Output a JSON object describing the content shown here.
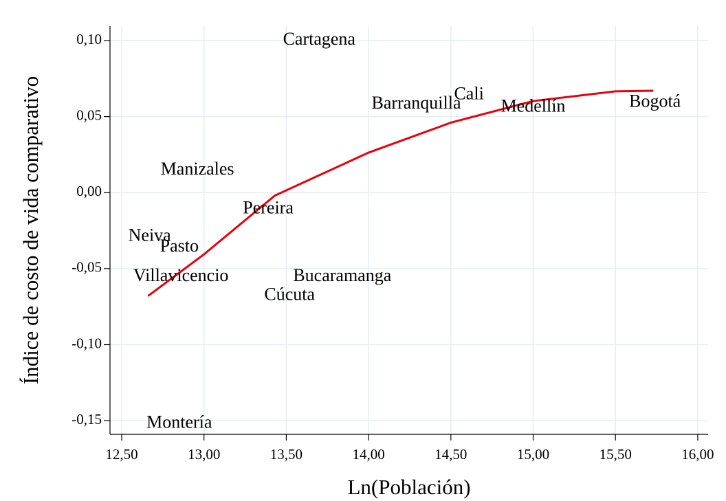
{
  "chart_data": {
    "type": "scatter",
    "x_label": "Ln(Población)",
    "y_label": "Índice de costo de vida comparativo",
    "labels": [
      "Cartagena",
      "Cali",
      "Barranquilla",
      "Medellín",
      "Bogotá",
      "Manizales",
      "Pereira",
      "Neiva",
      "Pasto",
      "Villavicencio",
      "Bucaramanga",
      "Cúcuta",
      "Montería"
    ],
    "x": [
      13.7,
      14.61,
      14.29,
      15.0,
      15.74,
      12.96,
      13.39,
      12.67,
      12.85,
      12.86,
      13.84,
      13.52,
      12.85
    ],
    "y": [
      0.1,
      0.064,
      0.058,
      0.056,
      0.059,
      0.0145,
      -0.011,
      -0.029,
      -0.036,
      -0.0555,
      -0.0555,
      -0.068,
      -0.152
    ],
    "label_color": "#000000",
    "fit": {
      "x": [
        12.66,
        13.0,
        13.43,
        14.0,
        14.5,
        15.0,
        15.5,
        15.73
      ],
      "y": [
        -0.068,
        -0.0406,
        -0.002,
        0.0263,
        0.046,
        0.0602,
        0.0666,
        0.067
      ],
      "color": "#e8000b"
    },
    "xlim": [
      12.429,
      16.063
    ],
    "ylim": [
      -0.159,
      0.1095
    ],
    "xticks": [
      {
        "value": 12.5,
        "label": "12,50"
      },
      {
        "value": 13.0,
        "label": "13,00"
      },
      {
        "value": 13.5,
        "label": "13,50"
      },
      {
        "value": 14.0,
        "label": "14,00"
      },
      {
        "value": 14.5,
        "label": "14,50"
      },
      {
        "value": 15.0,
        "label": "15,00"
      },
      {
        "value": 15.5,
        "label": "15,50"
      },
      {
        "value": 16.0,
        "label": "16,00"
      }
    ],
    "yticks": [
      {
        "value": -0.15,
        "label": "-0,15"
      },
      {
        "value": -0.1,
        "label": "-0,10"
      },
      {
        "value": -0.05,
        "label": "-0,05"
      },
      {
        "value": 0,
        "label": "0,00"
      },
      {
        "value": 0.05,
        "label": "0,05"
      },
      {
        "value": 0.1,
        "label": "0,10"
      }
    ],
    "grid": true
  }
}
